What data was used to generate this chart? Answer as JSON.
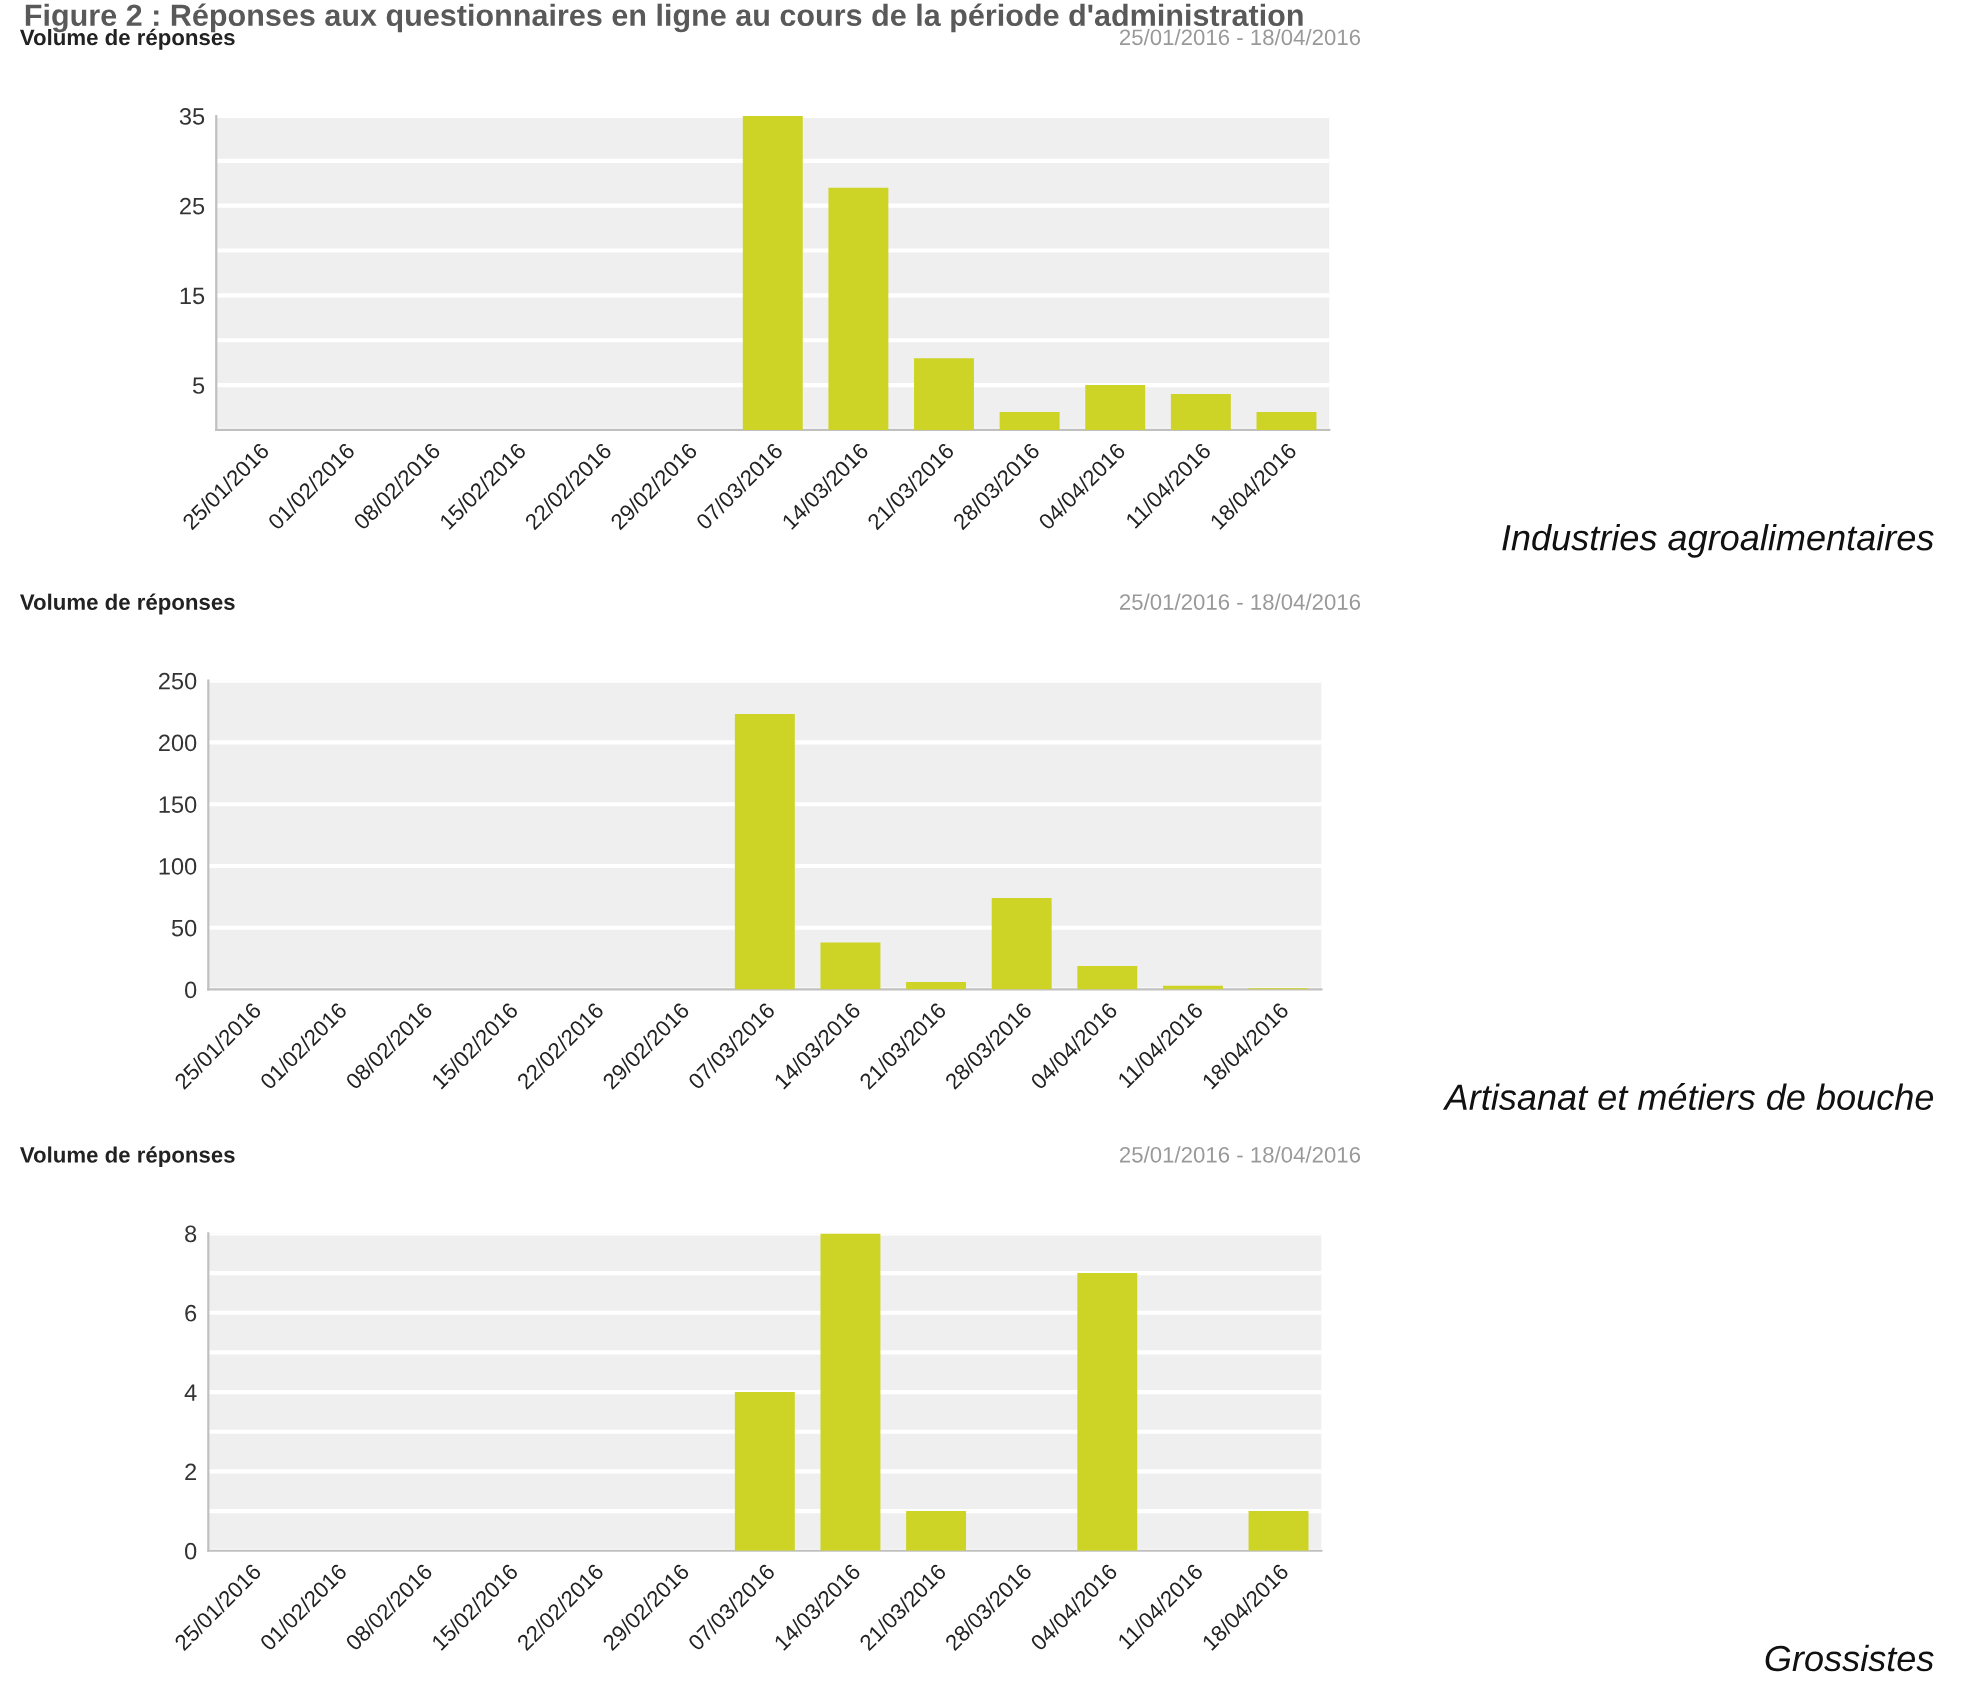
{
  "chart_data": [
    {
      "type": "bar",
      "title": "Figure 2 : Réponses aux questionnaires en ligne au cours de la période d'administration",
      "ylabel": "Volume de réponses",
      "subtitle": "25/01/2016 - 18/04/2016",
      "annotations": [
        "Industries agroalimentaires"
      ],
      "categories": [
        "25/01/2016",
        "01/02/2016",
        "08/02/2016",
        "15/02/2016",
        "22/02/2016",
        "29/02/2016",
        "07/03/2016",
        "14/03/2016",
        "21/03/2016",
        "28/03/2016",
        "04/04/2016",
        "11/04/2016",
        "18/04/2016"
      ],
      "values": [
        0,
        0,
        0,
        0,
        0,
        0,
        35,
        27,
        8,
        2,
        5,
        4,
        2
      ],
      "color": "#cdd426",
      "ylim": [
        0,
        35
      ],
      "yticks": [
        {
          "value": 0,
          "label": null
        },
        5,
        {
          "value": 10,
          "label": null
        },
        15,
        {
          "value": 20,
          "label": null
        },
        25,
        {
          "value": 30,
          "label": null
        },
        35
      ],
      "grid": "y",
      "legend": false
    },
    {
      "type": "bar",
      "ylabel": "Volume de réponses",
      "subtitle": "25/01/2016 - 18/04/2016",
      "annotations": [
        "Artisanat et métiers de bouche"
      ],
      "categories": [
        "25/01/2016",
        "01/02/2016",
        "08/02/2016",
        "15/02/2016",
        "22/02/2016",
        "29/02/2016",
        "07/03/2016",
        "14/03/2016",
        "21/03/2016",
        "28/03/2016",
        "04/04/2016",
        "11/04/2016",
        "18/04/2016"
      ],
      "values": [
        0,
        0,
        0,
        0,
        0,
        0,
        223,
        38,
        6,
        74,
        19,
        3,
        1
      ],
      "color": "#cdd426",
      "ylim": [
        0,
        250
      ],
      "yticks": [
        0,
        50,
        100,
        150,
        200,
        250
      ],
      "grid": "y",
      "legend": false
    },
    {
      "type": "bar",
      "ylabel": "Volume de réponses",
      "subtitle": "25/01/2016 - 18/04/2016",
      "annotations": [
        "Grossistes"
      ],
      "categories": [
        "25/01/2016",
        "01/02/2016",
        "08/02/2016",
        "15/02/2016",
        "22/02/2016",
        "29/02/2016",
        "07/03/2016",
        "14/03/2016",
        "21/03/2016",
        "28/03/2016",
        "04/04/2016",
        "11/04/2016",
        "18/04/2016"
      ],
      "values": [
        0,
        0,
        0,
        0,
        0,
        0,
        4,
        8,
        1,
        0,
        7,
        0,
        1
      ],
      "color": "#cdd426",
      "ylim": [
        0,
        8
      ],
      "yticks": [
        0,
        {
          "value": 1,
          "label": null
        },
        2,
        {
          "value": 3,
          "label": null
        },
        4,
        {
          "value": 5,
          "label": null
        },
        6,
        {
          "value": 7,
          "label": null
        },
        8
      ],
      "grid": "y",
      "legend": false
    }
  ]
}
